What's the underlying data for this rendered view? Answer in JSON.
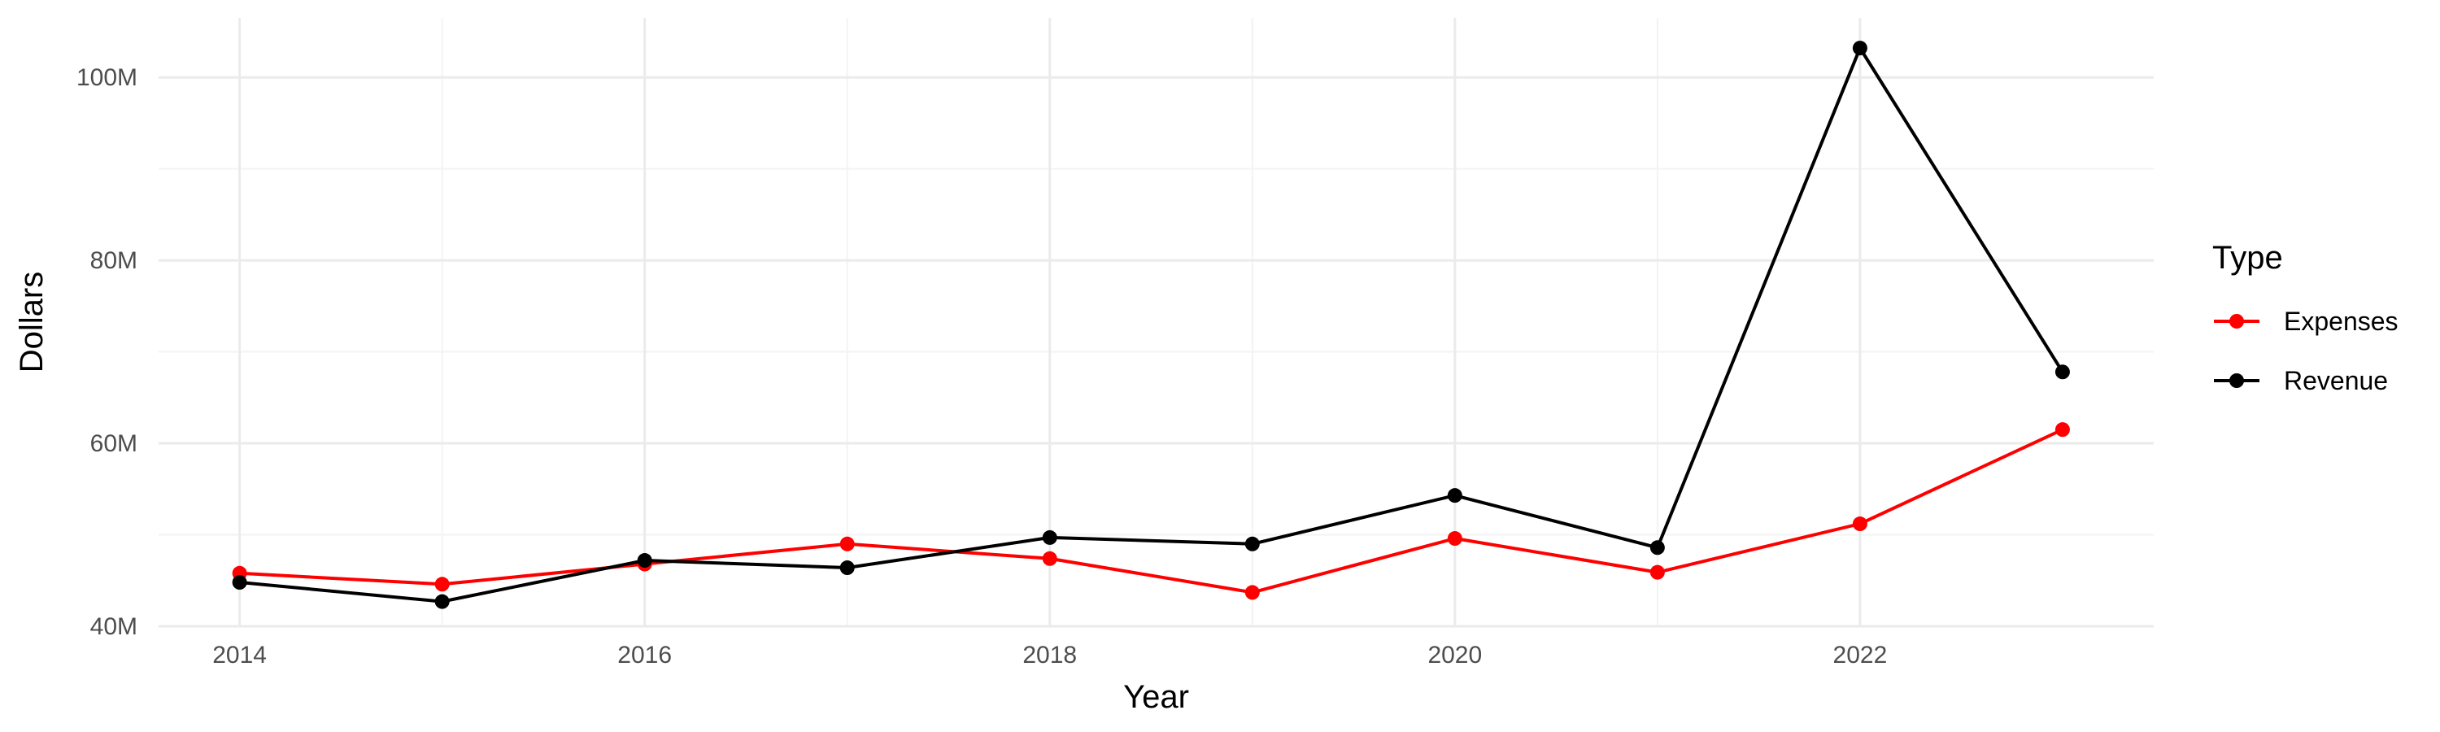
{
  "chart_data": {
    "type": "line",
    "xlabel": "Year",
    "ylabel": "Dollars",
    "xlim": [
      2013.6,
      2023.45
    ],
    "ylim": [
      40,
      106.5
    ],
    "x_ticks": [
      2014,
      2016,
      2018,
      2020,
      2022
    ],
    "x_tick_labels": [
      "2014",
      "2016",
      "2018",
      "2020",
      "2022"
    ],
    "y_ticks": [
      40,
      60,
      80,
      100
    ],
    "y_tick_labels": [
      "40M",
      "60M",
      "80M",
      "100M"
    ],
    "grid": true,
    "legend": {
      "title": "Type",
      "position": "right"
    },
    "x": [
      2014,
      2015,
      2016,
      2017,
      2018,
      2019,
      2020,
      2021,
      2022,
      2023
    ],
    "series": [
      {
        "name": "Expenses",
        "color": "#ff0000",
        "values": [
          45.8,
          44.6,
          46.8,
          49.0,
          47.4,
          43.7,
          49.6,
          45.9,
          51.2,
          61.5
        ]
      },
      {
        "name": "Revenue",
        "color": "#000000",
        "values": [
          44.8,
          42.7,
          47.2,
          46.4,
          49.7,
          49.0,
          54.3,
          48.6,
          103.2,
          67.8
        ]
      }
    ]
  }
}
